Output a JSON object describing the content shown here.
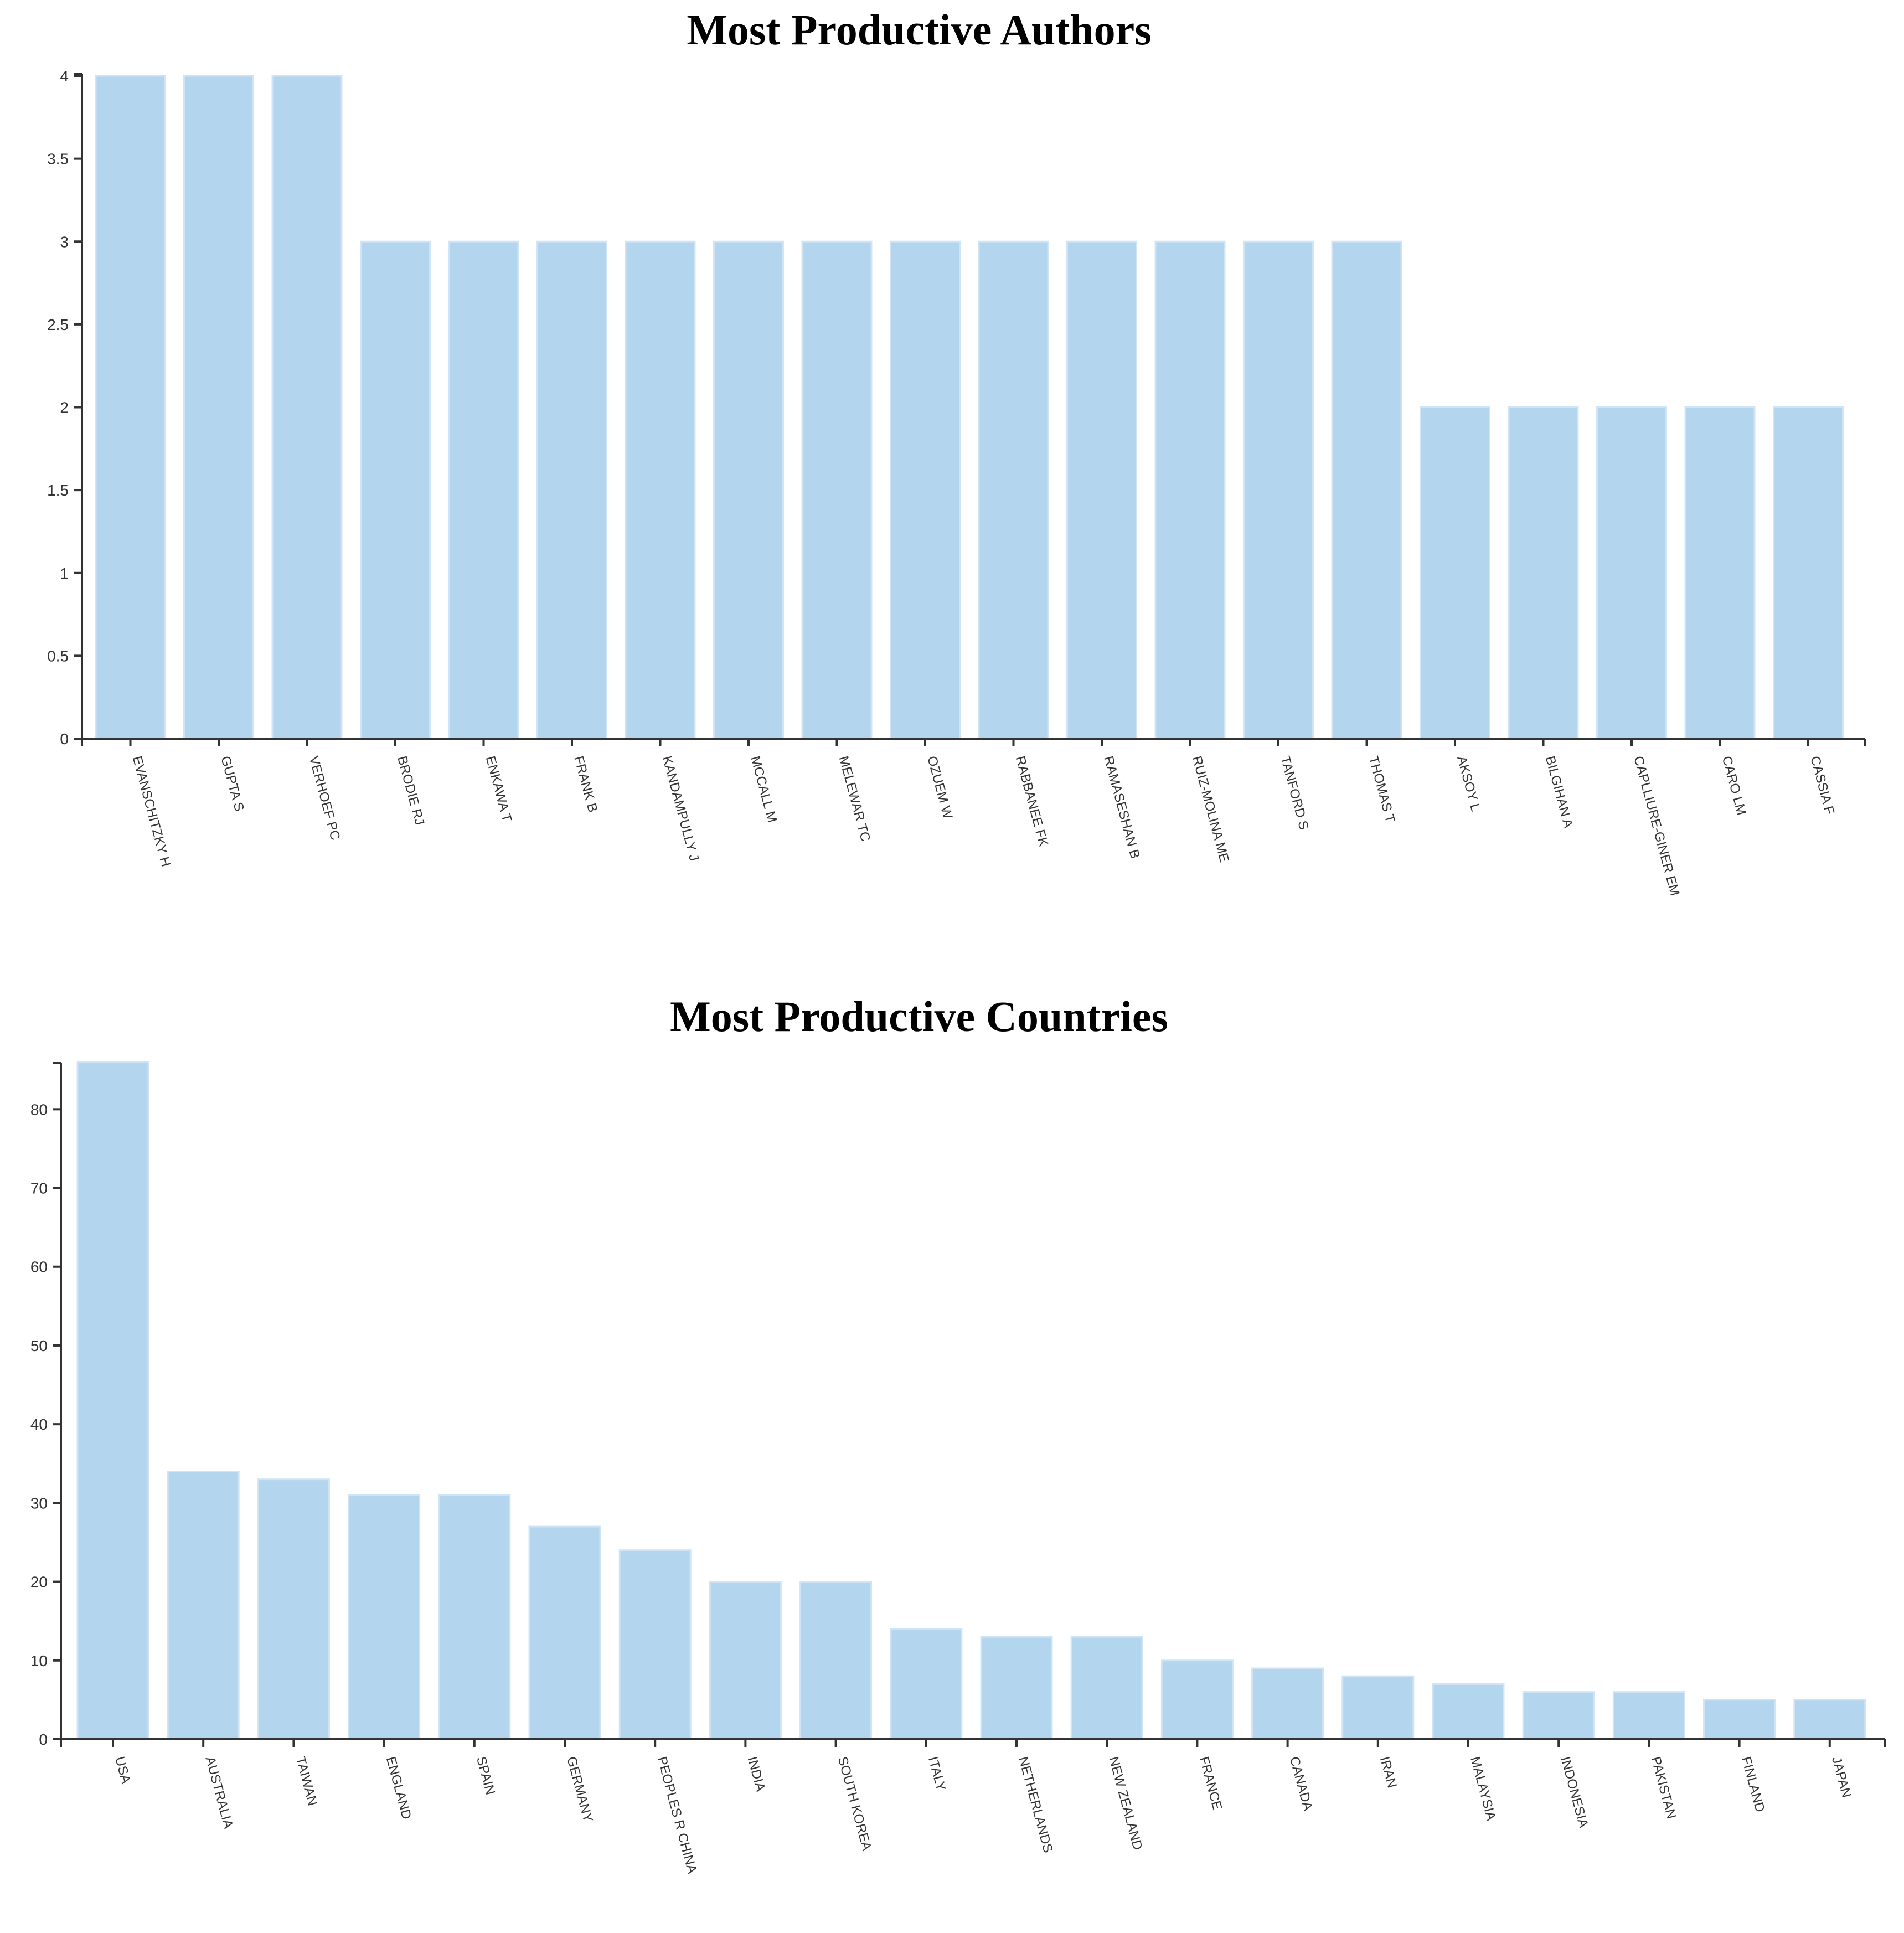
{
  "colors": {
    "bar_fill": "#b3d5ee",
    "bar_stroke": "#cfe4f5",
    "axis": "#333333"
  },
  "chart_data": [
    {
      "type": "bar",
      "title": "Most Productive Authors",
      "xlabel": "",
      "ylabel": "",
      "ylim": [
        0,
        4
      ],
      "yticks": [
        0,
        0.5,
        1,
        1.5,
        2,
        2.5,
        3,
        3.5,
        4
      ],
      "categories": [
        "EVANSCHITZKY H",
        "GUPTA S",
        "VERHOEF PC",
        "BRODIE RJ",
        "ENKAWA T",
        "FRANK B",
        "KANDAMPULLY J",
        "MCCALL M",
        "MELEWAR TC",
        "OZUEM W",
        "RABBANEE FK",
        "RAMASESHAN B",
        "RUIZ-MOLINA ME",
        "TANFORD S",
        "THOMAS T",
        "AKSOY L",
        "BILGIHAN A",
        "CAPLLIURE-GINER EM",
        "CARO LM",
        "CASSIA F"
      ],
      "values": [
        4,
        4,
        4,
        3,
        3,
        3,
        3,
        3,
        3,
        3,
        3,
        3,
        3,
        3,
        3,
        2,
        2,
        2,
        2,
        2
      ]
    },
    {
      "type": "bar",
      "title": "Most Productive Countries",
      "xlabel": "",
      "ylabel": "",
      "ylim": [
        0,
        86
      ],
      "yticks": [
        0,
        10,
        20,
        30,
        40,
        50,
        60,
        70,
        80
      ],
      "categories": [
        "USA",
        "AUSTRALIA",
        "TAIWAN",
        "ENGLAND",
        "SPAIN",
        "GERMANY",
        "PEOPLES R CHINA",
        "INDIA",
        "SOUTH KOREA",
        "ITALY",
        "NETHERLANDS",
        "NEW ZEALAND",
        "FRANCE",
        "CANADA",
        "IRAN",
        "MALAYSIA",
        "INDONESIA",
        "PAKISTAN",
        "FINLAND",
        "JAPAN"
      ],
      "values": [
        86,
        34,
        33,
        31,
        31,
        27,
        24,
        20,
        20,
        14,
        13,
        13,
        10,
        9,
        8,
        7,
        6,
        6,
        5,
        5
      ]
    }
  ]
}
